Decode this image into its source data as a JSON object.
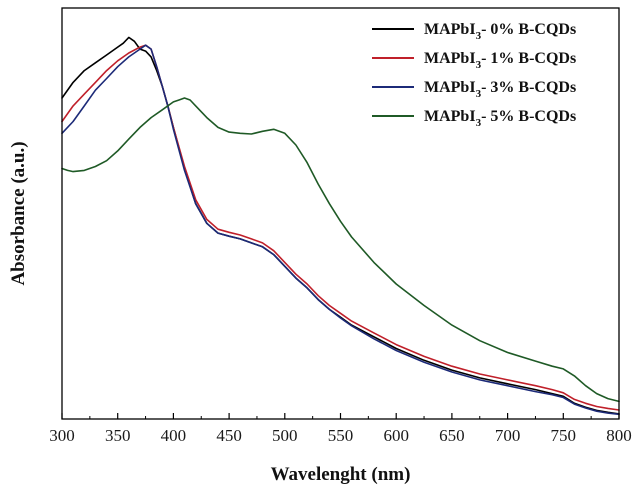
{
  "chart_data": {
    "type": "line",
    "xlabel": "Wavelenght (nm)",
    "ylabel": "Absorbance (a.u.)",
    "xlim": [
      300,
      800
    ],
    "ylim": [
      0,
      1.05
    ],
    "x_ticks": [
      300,
      350,
      400,
      450,
      500,
      550,
      600,
      650,
      700,
      750,
      800
    ],
    "y_tick_labels": false,
    "grid": false,
    "legend_position": "top-right",
    "series": [
      {
        "name": "MAPbI3- 0% B-CQDs",
        "label_main": "MAPbI",
        "label_sub": "3",
        "label_rest": "- 0% B-CQDs",
        "color": "#000000",
        "x": [
          300,
          310,
          320,
          330,
          340,
          350,
          355,
          360,
          365,
          370,
          375,
          380,
          385,
          390,
          395,
          400,
          410,
          420,
          430,
          440,
          450,
          460,
          470,
          480,
          490,
          500,
          510,
          520,
          530,
          540,
          550,
          560,
          580,
          600,
          625,
          650,
          675,
          700,
          725,
          740,
          750,
          760,
          770,
          780,
          790,
          800
        ],
        "y": [
          0.82,
          0.86,
          0.89,
          0.91,
          0.93,
          0.95,
          0.96,
          0.975,
          0.965,
          0.945,
          0.94,
          0.925,
          0.89,
          0.85,
          0.8,
          0.745,
          0.64,
          0.55,
          0.5,
          0.475,
          0.467,
          0.46,
          0.45,
          0.44,
          0.42,
          0.39,
          0.36,
          0.335,
          0.305,
          0.28,
          0.26,
          0.24,
          0.21,
          0.18,
          0.15,
          0.125,
          0.105,
          0.09,
          0.075,
          0.065,
          0.058,
          0.04,
          0.03,
          0.022,
          0.017,
          0.013
        ]
      },
      {
        "name": "MAPbI3- 1% B-CQDs",
        "label_main": "MAPbI",
        "label_sub": "3",
        "label_rest": "- 1% B-CQDs",
        "color": "#c0202a",
        "x": [
          300,
          310,
          320,
          330,
          340,
          350,
          360,
          370,
          375,
          380,
          385,
          390,
          395,
          400,
          410,
          420,
          430,
          440,
          450,
          460,
          470,
          480,
          490,
          500,
          510,
          520,
          530,
          540,
          550,
          560,
          580,
          600,
          625,
          650,
          675,
          700,
          725,
          740,
          750,
          760,
          770,
          780,
          790,
          800
        ],
        "y": [
          0.76,
          0.8,
          0.83,
          0.86,
          0.89,
          0.915,
          0.935,
          0.95,
          0.955,
          0.945,
          0.9,
          0.85,
          0.8,
          0.745,
          0.645,
          0.56,
          0.51,
          0.485,
          0.477,
          0.47,
          0.46,
          0.45,
          0.43,
          0.4,
          0.37,
          0.345,
          0.315,
          0.29,
          0.27,
          0.25,
          0.22,
          0.19,
          0.16,
          0.135,
          0.115,
          0.1,
          0.085,
          0.075,
          0.067,
          0.05,
          0.04,
          0.032,
          0.027,
          0.023
        ]
      },
      {
        "name": "MAPbI3- 3% B-CQDs",
        "label_main": "MAPbI",
        "label_sub": "3",
        "label_rest": "- 3% B-CQDs",
        "color": "#1c2a78",
        "x": [
          300,
          310,
          320,
          330,
          340,
          350,
          360,
          370,
          375,
          380,
          385,
          390,
          395,
          400,
          410,
          420,
          430,
          440,
          450,
          460,
          470,
          480,
          490,
          500,
          510,
          520,
          530,
          540,
          550,
          560,
          580,
          600,
          625,
          650,
          675,
          700,
          725,
          740,
          750,
          760,
          770,
          780,
          790,
          800
        ],
        "y": [
          0.73,
          0.76,
          0.8,
          0.84,
          0.87,
          0.9,
          0.925,
          0.945,
          0.955,
          0.945,
          0.9,
          0.85,
          0.8,
          0.74,
          0.635,
          0.55,
          0.5,
          0.475,
          0.467,
          0.46,
          0.45,
          0.44,
          0.42,
          0.39,
          0.36,
          0.335,
          0.305,
          0.28,
          0.258,
          0.238,
          0.205,
          0.175,
          0.145,
          0.12,
          0.1,
          0.085,
          0.07,
          0.062,
          0.055,
          0.038,
          0.028,
          0.02,
          0.015,
          0.012
        ]
      },
      {
        "name": "MAPbI3- 5% B-CQDs",
        "label_main": "MAPbI",
        "label_sub": "3",
        "label_rest": "- 5% B-CQDs",
        "color": "#1f5a26",
        "x": [
          300,
          305,
          310,
          320,
          330,
          340,
          350,
          360,
          370,
          380,
          390,
          400,
          405,
          410,
          415,
          420,
          430,
          440,
          450,
          460,
          470,
          480,
          490,
          500,
          510,
          520,
          530,
          540,
          550,
          560,
          580,
          600,
          625,
          650,
          675,
          700,
          725,
          740,
          750,
          760,
          770,
          780,
          790,
          800
        ],
        "y": [
          0.64,
          0.635,
          0.632,
          0.635,
          0.645,
          0.66,
          0.685,
          0.715,
          0.745,
          0.77,
          0.79,
          0.81,
          0.815,
          0.82,
          0.815,
          0.8,
          0.77,
          0.745,
          0.733,
          0.73,
          0.728,
          0.735,
          0.74,
          0.73,
          0.7,
          0.655,
          0.6,
          0.55,
          0.505,
          0.465,
          0.4,
          0.345,
          0.29,
          0.24,
          0.2,
          0.17,
          0.148,
          0.135,
          0.128,
          0.11,
          0.085,
          0.065,
          0.052,
          0.045
        ]
      }
    ]
  }
}
